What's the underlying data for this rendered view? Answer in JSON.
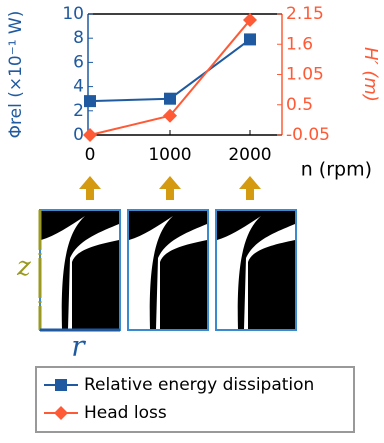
{
  "chart_data": {
    "type": "line",
    "x": [
      0,
      1000,
      2000
    ],
    "xlim": [
      0,
      2400
    ],
    "xticks": [
      0,
      1000,
      2000
    ],
    "ylim": [
      0,
      10
    ],
    "yticks": [
      0,
      2,
      4,
      6,
      8,
      10
    ],
    "y2lim": [
      -0.05,
      2.15
    ],
    "y2ticks": [
      -0.05,
      0.5,
      1.05,
      1.6,
      2.15
    ],
    "xlabel": "n (rpm)",
    "ylabel": "Φrel (×10⁻¹ W)",
    "y2label": "H′ (m)",
    "ycolor": "#1f5aa0",
    "y2color": "#ff5a36",
    "series": [
      {
        "name": "Relative energy dissipation",
        "color": "#1f5aa0",
        "marker": "square",
        "values": [
          2.8,
          3.0,
          7.9
        ]
      },
      {
        "name": "Head loss",
        "color": "#ff5a36",
        "marker": "diamond",
        "axis": "y2",
        "values": [
          -0.05,
          0.3,
          2.04
        ]
      }
    ],
    "annotations": {
      "z": "z",
      "r": "r"
    },
    "legend": "bottom"
  }
}
